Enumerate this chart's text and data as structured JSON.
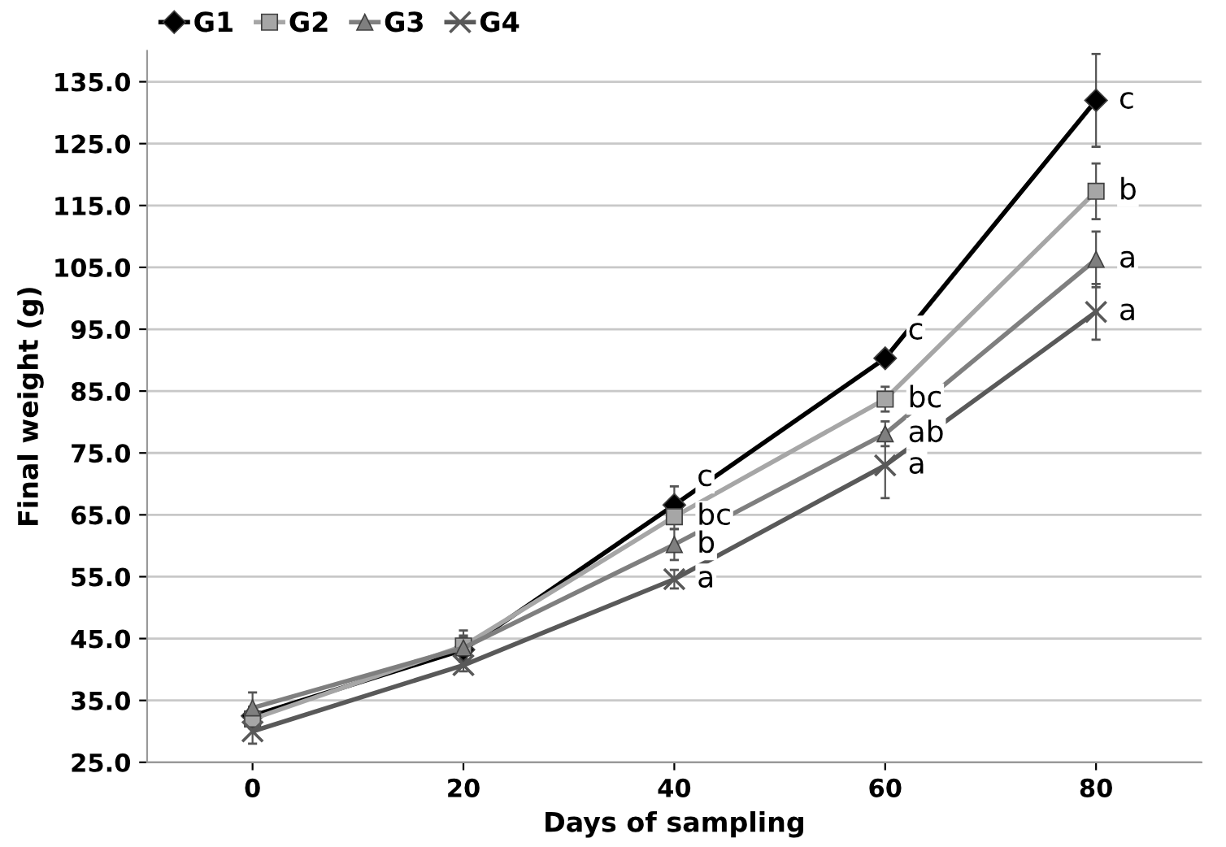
{
  "chart_data": {
    "type": "line",
    "xlabel": "Days of sampling",
    "ylabel": "Final weight (g)",
    "categories": [
      "0",
      "20",
      "40",
      "60",
      "80"
    ],
    "series": [
      {
        "name": "G1",
        "color": "#000000",
        "marker": "diamond",
        "values": [
          32.5,
          43.2,
          66.6,
          90.3,
          132.0
        ],
        "errors": [
          1.5,
          2,
          3,
          null,
          7.5
        ]
      },
      {
        "name": "G2",
        "color": "#a6a6a6",
        "marker": "square",
        "values": [
          32.0,
          43.8,
          64.7,
          83.7,
          117.3
        ],
        "errors": [
          1.5,
          2.5,
          2,
          2,
          4.5
        ]
      },
      {
        "name": "G3",
        "color": "#7f7f7f",
        "marker": "triangle",
        "values": [
          33.8,
          43.5,
          60.2,
          78.1,
          106.3
        ],
        "errors": [
          2.5,
          2,
          2.5,
          2,
          4.5
        ]
      },
      {
        "name": "G4",
        "color": "#595959",
        "marker": "cross",
        "values": [
          30.0,
          40.7,
          54.6,
          73.0,
          97.8
        ],
        "errors": [
          2,
          1,
          1.5,
          5.3,
          4.5
        ]
      }
    ],
    "ylim": [
      25,
      140
    ],
    "yticks": [
      {
        "value": 25,
        "label": "25.0"
      },
      {
        "value": 35,
        "label": "35.0"
      },
      {
        "value": 45,
        "label": "45.0"
      },
      {
        "value": 55,
        "label": "55.0"
      },
      {
        "value": 65,
        "label": "65.0"
      },
      {
        "value": 75,
        "label": "75.0"
      },
      {
        "value": 85,
        "label": "85.0"
      },
      {
        "value": 95,
        "label": "95.0"
      },
      {
        "value": 105,
        "label": "105.0"
      },
      {
        "value": 115,
        "label": "115.0"
      },
      {
        "value": 125,
        "label": "125.0"
      },
      {
        "value": 135,
        "label": "135.0"
      }
    ],
    "grid": "y",
    "legend": "top left",
    "annotations": [
      {
        "text": "c",
        "x": "40",
        "y": 66.6
      },
      {
        "text": "bc",
        "x": "40",
        "y": 64.7
      },
      {
        "text": "b",
        "x": "40",
        "y": 60.2
      },
      {
        "text": "a",
        "x": "40",
        "y": 54.6
      },
      {
        "text": "c",
        "x": "60",
        "y": 90.3
      },
      {
        "text": "bc",
        "x": "60",
        "y": 83.7
      },
      {
        "text": "ab",
        "x": "60",
        "y": 78.1
      },
      {
        "text": "a",
        "x": "60",
        "y": 73.0
      },
      {
        "text": "c",
        "x": "80",
        "y": 132.0
      },
      {
        "text": "b",
        "x": "80",
        "y": 117.3
      },
      {
        "text": "a",
        "x": "80",
        "y": 106.3
      },
      {
        "text": "a",
        "x": "80",
        "y": 97.8
      }
    ]
  }
}
